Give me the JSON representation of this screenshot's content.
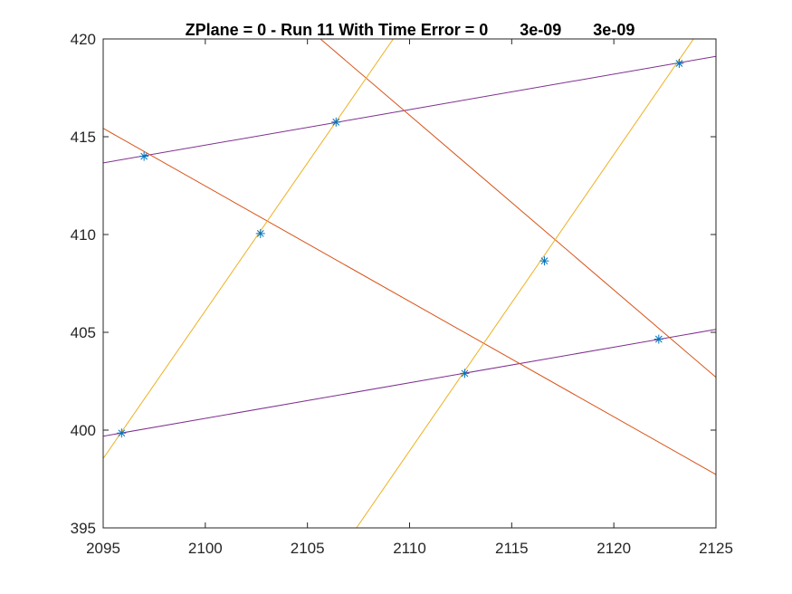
{
  "chart_data": {
    "type": "line",
    "title": "ZPlane = 0 - Run 11 With Time Error = 0       3e-09       3e-09",
    "xlabel": "",
    "ylabel": "",
    "xlim": [
      2095,
      2125
    ],
    "ylim": [
      395,
      420
    ],
    "xticks": [
      "2095",
      "2100",
      "2105",
      "2110",
      "2115",
      "2120",
      "2125"
    ],
    "yticks": [
      "395",
      "400",
      "405",
      "410",
      "415",
      "420"
    ],
    "grid": false,
    "legend": "none",
    "colors": {
      "purple": "#7e2f8e",
      "orange": "#d95319",
      "yellow": "#edb120",
      "marker": "#0072bd",
      "axis": "#262626"
    },
    "series": [
      {
        "color": "purple",
        "x": [
          2095,
          2125
        ],
        "y": [
          413.66,
          419.11
        ]
      },
      {
        "color": "purple",
        "x": [
          2095,
          2125
        ],
        "y": [
          399.69,
          405.15
        ]
      },
      {
        "color": "orange",
        "x": [
          2095,
          2125
        ],
        "y": [
          415.43,
          397.73
        ]
      },
      {
        "color": "orange",
        "x": [
          2095,
          2125
        ],
        "y": [
          429.5,
          402.7
        ]
      },
      {
        "color": "yellow",
        "x": [
          2095,
          2109.2
        ],
        "y": [
          398.55,
          420
        ]
      },
      {
        "color": "yellow",
        "x": [
          2107.4,
          2123.9
        ],
        "y": [
          395,
          420
        ]
      }
    ],
    "points": {
      "x": [
        2095.9,
        2097.0,
        2102.7,
        2106.4,
        2112.7,
        2116.6,
        2122.2,
        2123.2
      ],
      "y": [
        399.85,
        414.0,
        410.05,
        415.75,
        402.9,
        408.65,
        404.65,
        418.75
      ]
    }
  }
}
